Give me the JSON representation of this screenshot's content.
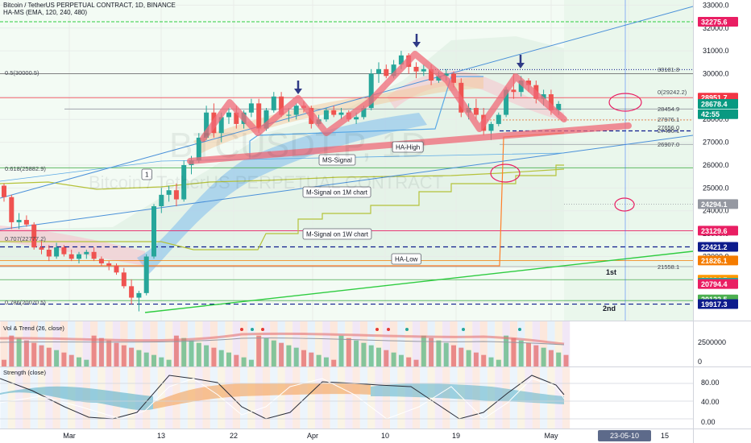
{
  "header": {
    "title": "Bitcoin / TetherUS PERPETUAL CONTRACT, 1D, BINANCE",
    "indicator": "HA-MS (EMA, 120, 240, 480)",
    "watermark_symbol": "BTCUSDT.P, 1D",
    "watermark_name": "Bitcoin / TetherUS PERPETUAL CONTRACT"
  },
  "chart_data": {
    "type": "candlestick",
    "x_ticks": [
      "Mar",
      "13",
      "22",
      "Apr",
      "10",
      "19",
      "May",
      "15"
    ],
    "x_current_label": "23-05-10",
    "y_ticks": [
      33000,
      32000,
      31000,
      30000,
      29000,
      28000,
      27000,
      26000,
      25000,
      24000,
      23000,
      22000,
      21000,
      20000
    ],
    "ylim": [
      19600,
      33100
    ],
    "candles": [
      [
        25100,
        25200,
        24400,
        24600
      ],
      [
        24600,
        24700,
        23200,
        23500
      ],
      [
        23500,
        23900,
        23200,
        23600
      ],
      [
        23600,
        23800,
        23300,
        23400
      ],
      [
        23400,
        23500,
        22300,
        22400
      ],
      [
        22400,
        22700,
        22100,
        22300
      ],
      [
        22300,
        22500,
        21800,
        22000
      ],
      [
        22000,
        22600,
        21900,
        22400
      ],
      [
        22400,
        22500,
        22000,
        22100
      ],
      [
        22100,
        22300,
        21800,
        21900
      ],
      [
        21900,
        22200,
        21700,
        22100
      ],
      [
        22100,
        22300,
        21900,
        22200
      ],
      [
        22200,
        22400,
        21800,
        21900
      ],
      [
        21900,
        22000,
        21600,
        21700
      ],
      [
        21700,
        21800,
        21400,
        21600
      ],
      [
        21600,
        21700,
        21200,
        21300
      ],
      [
        21300,
        21500,
        20600,
        20700
      ],
      [
        20700,
        21000,
        19900,
        20200
      ],
      [
        20200,
        20500,
        19600,
        20400
      ],
      [
        20400,
        22100,
        20300,
        22000
      ],
      [
        22000,
        24300,
        21900,
        24200
      ],
      [
        24200,
        25000,
        23900,
        24700
      ],
      [
        24700,
        25100,
        24400,
        24900
      ],
      [
        24900,
        25200,
        24200,
        24500
      ],
      [
        24500,
        26200,
        24400,
        26000
      ],
      [
        26000,
        26400,
        25600,
        26200
      ],
      [
        26200,
        27400,
        26100,
        27200
      ],
      [
        27200,
        28600,
        27100,
        28300
      ],
      [
        28300,
        28700,
        27200,
        27400
      ],
      [
        27400,
        28300,
        27000,
        28100
      ],
      [
        28100,
        28500,
        27800,
        28300
      ],
      [
        28300,
        28600,
        27600,
        27800
      ],
      [
        27800,
        28400,
        27600,
        28300
      ],
      [
        28300,
        28900,
        28100,
        28700
      ],
      [
        28700,
        28900,
        27400,
        27600
      ],
      [
        27600,
        28500,
        27500,
        28400
      ],
      [
        28400,
        29200,
        28300,
        29000
      ],
      [
        29000,
        29200,
        28100,
        28200
      ],
      [
        28200,
        28500,
        27900,
        28200
      ],
      [
        28200,
        28700,
        28000,
        28600
      ],
      [
        28600,
        28800,
        28300,
        28500
      ],
      [
        28500,
        28600,
        27600,
        27800
      ],
      [
        27800,
        28200,
        27700,
        28000
      ],
      [
        28000,
        28500,
        27900,
        28400
      ],
      [
        28400,
        28600,
        28100,
        28200
      ],
      [
        28200,
        28500,
        28000,
        28300
      ],
      [
        28300,
        28400,
        27900,
        28000
      ],
      [
        28000,
        28300,
        27800,
        28100
      ],
      [
        28100,
        28600,
        28000,
        28500
      ],
      [
        28500,
        30200,
        28400,
        30000
      ],
      [
        30000,
        30500,
        29600,
        30200
      ],
      [
        30200,
        30400,
        29800,
        29900
      ],
      [
        29900,
        30600,
        29800,
        30400
      ],
      [
        30400,
        31000,
        30200,
        30800
      ],
      [
        30800,
        30900,
        30000,
        30300
      ],
      [
        30300,
        30500,
        29800,
        30100
      ],
      [
        30100,
        30400,
        29900,
        30200
      ],
      [
        30200,
        30400,
        29500,
        29700
      ],
      [
        29700,
        30100,
        29600,
        29900
      ],
      [
        29900,
        30200,
        29700,
        30000
      ],
      [
        30000,
        30100,
        29400,
        29600
      ],
      [
        29600,
        29800,
        28100,
        28300
      ],
      [
        28300,
        28700,
        28000,
        28500
      ],
      [
        28500,
        28900,
        28000,
        28200
      ],
      [
        28200,
        28500,
        27300,
        27500
      ],
      [
        27500,
        27900,
        27100,
        27800
      ],
      [
        27800,
        28300,
        27700,
        28200
      ],
      [
        28200,
        29400,
        28100,
        29300
      ],
      [
        29300,
        30000,
        28900,
        29200
      ],
      [
        29200,
        29900,
        29000,
        29700
      ],
      [
        29700,
        29800,
        29200,
        29500
      ],
      [
        29500,
        29700,
        28700,
        28900
      ],
      [
        28900,
        29300,
        28600,
        29100
      ],
      [
        29100,
        29300,
        28200,
        28400
      ],
      [
        28400,
        28800,
        28200,
        28678
      ]
    ],
    "levels": [
      {
        "label": "0.5(30000.5)",
        "value": 30000.5
      },
      {
        "label": "0.618(25882.9)",
        "value": 25882.9
      },
      {
        "label": "0.707(22777.2)",
        "value": 22777.2
      },
      {
        "label": "0.786(20070.5)",
        "value": 20070.5
      },
      {
        "label": "30181.8",
        "value": 30181.8
      },
      {
        "label": "0(29242.2)",
        "value": 29242.2
      },
      {
        "label": "28454.9",
        "value": 28454.9
      },
      {
        "label": "27976.1",
        "value": 27976.1
      },
      {
        "label": "27656.0",
        "value": 27656.0
      },
      {
        "label": "27496.1",
        "value": 27496.1
      },
      {
        "label": "26907.0",
        "value": 26907.0
      },
      {
        "label": "21558.1",
        "value": 21558.1
      }
    ],
    "price_tags": [
      {
        "label": "32275.6",
        "value": 32275.6,
        "color": "#e91e63"
      },
      {
        "label": "28951.7",
        "value": 28951.7,
        "color": "#f23645"
      },
      {
        "label": "28678.4",
        "value": 28678.4,
        "color": "#089981"
      },
      {
        "label": "42:55",
        "value": 28230,
        "color": "#089981"
      },
      {
        "label": "24294.1",
        "value": 24294.1,
        "color": "#9598a1"
      },
      {
        "label": "23129.6",
        "value": 23129.6,
        "color": "#e91e63"
      },
      {
        "label": "22421.2",
        "value": 22421.2,
        "color": "#0d1b8c"
      },
      {
        "label": "21826.1",
        "value": 21826.1,
        "color": "#f57c00"
      },
      {
        "label": "20984.7",
        "value": 20984.7,
        "color": "#ff9800"
      },
      {
        "label": "20853.8",
        "value": 20853.8,
        "color": "#26a69a"
      },
      {
        "label": "20794.4",
        "value": 20794.4,
        "color": "#e91e63"
      },
      {
        "label": "20122.5",
        "value": 20122.5,
        "color": "#4caf50"
      },
      {
        "label": "19917.3",
        "value": 19917.3,
        "color": "#0d1b8c"
      }
    ],
    "annotations": [
      {
        "label": "MS-Signal"
      },
      {
        "label": "HA-High"
      },
      {
        "label": "M-Signal on 1M chart"
      },
      {
        "label": "M-Signal on 1W chart"
      },
      {
        "label": "HA-Low"
      },
      {
        "label": "1"
      },
      {
        "label": "1st"
      },
      {
        "label": "2nd"
      }
    ],
    "panes": [
      {
        "title": "Vol & Trend (26, close)",
        "y_ticks": [
          "2500000",
          "0"
        ]
      },
      {
        "title": "Strength (close)",
        "y_ticks": [
          "80.00",
          "40.00",
          "0.00"
        ]
      }
    ]
  },
  "colors": {
    "up": "#26a69a",
    "down": "#ef5350",
    "pattern": "#f06a78",
    "channel": "#4a90d9",
    "support": "#2ecc40",
    "mSignal": "#b5c23a"
  }
}
